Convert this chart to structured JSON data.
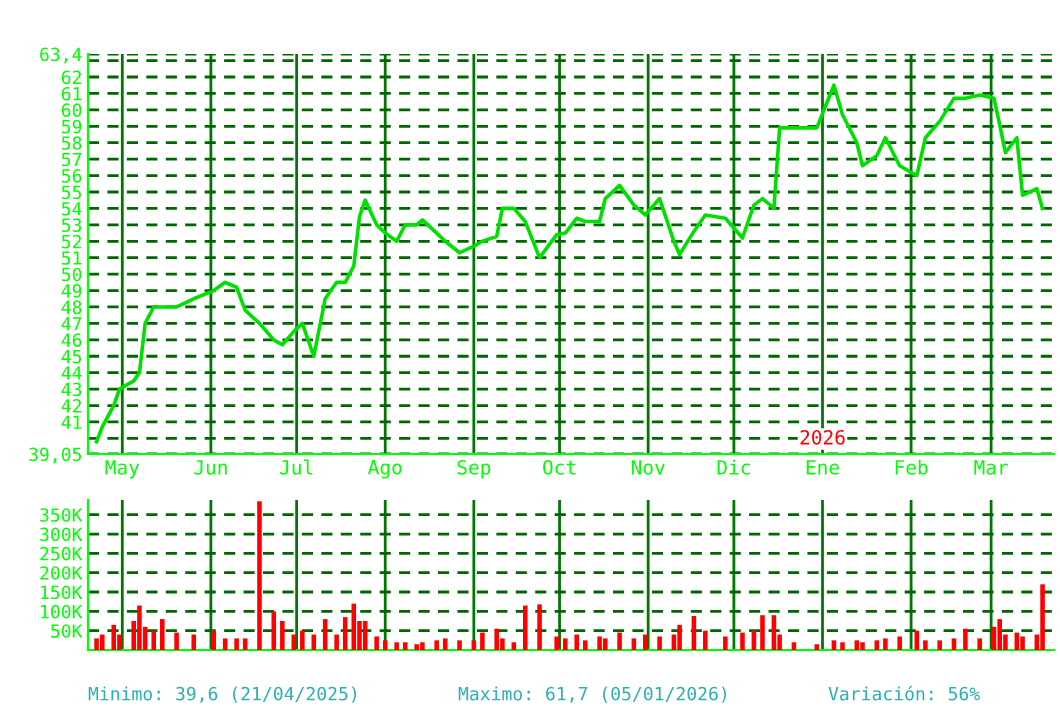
{
  "chart_data": [
    {
      "type": "line",
      "x": [
        "2025-04-22",
        "2025-04-24",
        "2025-04-28",
        "2025-04-30",
        "2025-05-05",
        "2025-05-07",
        "2025-05-09",
        "2025-05-12",
        "2025-05-15",
        "2025-05-20",
        "2025-05-26",
        "2025-06-02",
        "2025-06-06",
        "2025-06-10",
        "2025-06-13",
        "2025-06-18",
        "2025-06-23",
        "2025-06-26",
        "2025-06-30",
        "2025-07-03",
        "2025-07-07",
        "2025-07-11",
        "2025-07-15",
        "2025-07-18",
        "2025-07-21",
        "2025-07-23",
        "2025-07-25",
        "2025-07-29",
        "2025-08-01",
        "2025-08-05",
        "2025-08-08",
        "2025-08-12",
        "2025-08-14",
        "2025-08-19",
        "2025-08-22",
        "2025-08-27",
        "2025-09-01",
        "2025-09-04",
        "2025-09-09",
        "2025-09-11",
        "2025-09-15",
        "2025-09-19",
        "2025-09-24",
        "2025-09-30",
        "2025-10-03",
        "2025-10-07",
        "2025-10-10",
        "2025-10-15",
        "2025-10-17",
        "2025-10-22",
        "2025-10-27",
        "2025-10-31",
        "2025-11-05",
        "2025-11-10",
        "2025-11-12",
        "2025-11-17",
        "2025-11-21",
        "2025-11-28",
        "2025-12-04",
        "2025-12-08",
        "2025-12-11",
        "2025-12-15",
        "2025-12-17",
        "2025-12-22",
        "2025-12-30",
        "2026-01-05",
        "2026-01-08",
        "2026-01-13",
        "2026-01-15",
        "2026-01-20",
        "2026-01-23",
        "2026-01-28",
        "2026-02-03",
        "2026-02-06",
        "2026-02-11",
        "2026-02-16",
        "2026-02-20",
        "2026-02-25",
        "2026-03-02",
        "2026-03-04",
        "2026-03-06",
        "2026-03-10",
        "2026-03-12",
        "2026-03-17",
        "2026-03-19"
      ],
      "series": [
        {
          "color": "#00e000",
          "values": [
            39.8,
            40.7,
            42.0,
            43.0,
            43.5,
            44.0,
            47.0,
            48.0,
            48.0,
            48.0,
            48.5,
            49.0,
            49.5,
            49.2,
            47.8,
            47.0,
            46.0,
            45.7,
            46.5,
            47.0,
            45.0,
            48.5,
            49.5,
            49.5,
            50.5,
            53.5,
            54.5,
            53.0,
            52.5,
            52.0,
            53.0,
            53.0,
            53.3,
            52.5,
            52.0,
            51.3,
            51.7,
            52.0,
            52.3,
            54.0,
            54.0,
            53.2,
            51.0,
            52.4,
            52.5,
            53.4,
            53.2,
            53.2,
            54.6,
            55.4,
            54.2,
            53.6,
            54.6,
            52.0,
            51.2,
            52.6,
            53.6,
            53.4,
            52.2,
            54.2,
            54.6,
            54.0,
            58.9,
            58.9,
            58.9,
            61.5,
            59.7,
            58.0,
            56.6,
            57.2,
            58.3,
            56.6,
            56.0,
            58.3,
            59.3,
            60.7,
            60.7,
            60.9,
            60.7,
            59.1,
            57.4,
            58.3,
            54.8,
            55.2,
            54.0
          ]
        }
      ],
      "xlim": [
        "2025-04-19",
        "2026-03-23"
      ],
      "xticks": [
        {
          "value": "2025-05-01",
          "label": "May"
        },
        {
          "value": "2025-06-01",
          "label": "Jun"
        },
        {
          "value": "2025-07-01",
          "label": "Jul"
        },
        {
          "value": "2025-08-01",
          "label": "Ago"
        },
        {
          "value": "2025-09-01",
          "label": "Sep"
        },
        {
          "value": "2025-10-01",
          "label": "Oct"
        },
        {
          "value": "2025-11-01",
          "label": "Nov"
        },
        {
          "value": "2025-12-01",
          "label": "Dic"
        },
        {
          "value": "2026-01-01",
          "label": "Ene"
        },
        {
          "value": "2026-02-01",
          "label": "Feb"
        },
        {
          "value": "2026-03-01",
          "label": "Mar"
        }
      ],
      "ylim": [
        39.05,
        63.4
      ],
      "yticks": [
        {
          "value": 39.05,
          "label": "39,05"
        },
        {
          "value": 40,
          "label": null
        },
        41,
        42,
        43,
        44,
        45,
        46,
        47,
        48,
        49,
        50,
        51,
        52,
        53,
        54,
        55,
        56,
        57,
        58,
        59,
        60,
        61,
        62,
        {
          "value": 63,
          "label": null
        },
        {
          "value": 63.4,
          "label": "63,4"
        }
      ],
      "annotations": [
        "2026"
      ],
      "grid": true,
      "legend": false,
      "marker": "none",
      "line_style": "solid"
    },
    {
      "type": "bar",
      "x": [
        "2025-04-22",
        "2025-04-24",
        "2025-04-28",
        "2025-04-30",
        "2025-05-05",
        "2025-05-07",
        "2025-05-09",
        "2025-05-12",
        "2025-05-15",
        "2025-05-20",
        "2025-05-26",
        "2025-06-02",
        "2025-06-06",
        "2025-06-10",
        "2025-06-13",
        "2025-06-18",
        "2025-06-23",
        "2025-06-26",
        "2025-06-30",
        "2025-07-03",
        "2025-07-07",
        "2025-07-11",
        "2025-07-15",
        "2025-07-18",
        "2025-07-21",
        "2025-07-23",
        "2025-07-25",
        "2025-07-29",
        "2025-08-01",
        "2025-08-05",
        "2025-08-08",
        "2025-08-12",
        "2025-08-14",
        "2025-08-19",
        "2025-08-22",
        "2025-08-27",
        "2025-09-01",
        "2025-09-04",
        "2025-09-09",
        "2025-09-11",
        "2025-09-15",
        "2025-09-19",
        "2025-09-24",
        "2025-09-30",
        "2025-10-03",
        "2025-10-07",
        "2025-10-10",
        "2025-10-15",
        "2025-10-17",
        "2025-10-22",
        "2025-10-27",
        "2025-10-31",
        "2025-11-05",
        "2025-11-10",
        "2025-11-12",
        "2025-11-17",
        "2025-11-21",
        "2025-11-28",
        "2025-12-04",
        "2025-12-08",
        "2025-12-11",
        "2025-12-15",
        "2025-12-17",
        "2025-12-22",
        "2025-12-30",
        "2026-01-05",
        "2026-01-08",
        "2026-01-13",
        "2026-01-15",
        "2026-01-20",
        "2026-01-23",
        "2026-01-28",
        "2026-02-03",
        "2026-02-06",
        "2026-02-11",
        "2026-02-16",
        "2026-02-20",
        "2026-02-25",
        "2026-03-02",
        "2026-03-04",
        "2026-03-06",
        "2026-03-10",
        "2026-03-12",
        "2026-03-17",
        "2026-03-19"
      ],
      "series": [
        {
          "color": "#ff0000",
          "values": [
            30000,
            40000,
            65000,
            40000,
            75000,
            115000,
            60000,
            50000,
            80000,
            45000,
            40000,
            50000,
            30000,
            30000,
            30000,
            385000,
            100000,
            75000,
            40000,
            50000,
            40000,
            80000,
            40000,
            85000,
            120000,
            75000,
            75000,
            35000,
            25000,
            20000,
            20000,
            15000,
            20000,
            25000,
            30000,
            25000,
            25000,
            45000,
            55000,
            30000,
            20000,
            115000,
            118000,
            35000,
            30000,
            40000,
            25000,
            35000,
            30000,
            45000,
            30000,
            40000,
            35000,
            40000,
            65000,
            88000,
            50000,
            35000,
            45000,
            50000,
            90000,
            90000,
            40000,
            20000,
            15000,
            25000,
            20000,
            25000,
            20000,
            25000,
            30000,
            35000,
            50000,
            25000,
            25000,
            30000,
            55000,
            30000,
            60000,
            80000,
            40000,
            45000,
            35000,
            40000,
            170000
          ]
        }
      ],
      "xlim": [
        "2025-04-19",
        "2026-03-23"
      ],
      "xticks": [
        {
          "value": "2025-05-01",
          "label": null
        },
        {
          "value": "2025-06-01",
          "label": null
        },
        {
          "value": "2025-07-01",
          "label": null
        },
        {
          "value": "2025-08-01",
          "label": null
        },
        {
          "value": "2025-09-01",
          "label": null
        },
        {
          "value": "2025-10-01",
          "label": null
        },
        {
          "value": "2025-11-01",
          "label": null
        },
        {
          "value": "2025-12-01",
          "label": null
        },
        {
          "value": "2026-01-01",
          "label": null
        },
        {
          "value": "2026-02-01",
          "label": null
        },
        {
          "value": "2026-03-01",
          "label": null
        }
      ],
      "ylim": [
        0,
        388000
      ],
      "yticks": [
        {
          "value": 50000,
          "label": "50K"
        },
        {
          "value": 100000,
          "label": "100K"
        },
        {
          "value": 150000,
          "label": "150K"
        },
        {
          "value": 200000,
          "label": "200K"
        },
        {
          "value": 250000,
          "label": "250K"
        },
        {
          "value": 300000,
          "label": "300K"
        },
        {
          "value": 350000,
          "label": "350K"
        }
      ],
      "annotations": [
        "Minimo: 39,6 (21/04/2025)",
        "Maximo: 61,7 (05/01/2026)",
        "Variación: 56%"
      ],
      "tick_labels": "y",
      "grid": true,
      "legend": false
    }
  ]
}
